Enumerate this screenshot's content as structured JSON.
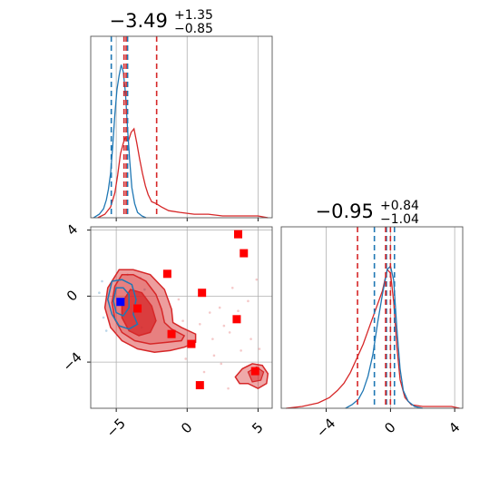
{
  "titles": {
    "x": {
      "main": "−3.49",
      "sup": "+1.35",
      "sub": "−0.85"
    },
    "y": {
      "main": "−0.95",
      "sup": "+0.84",
      "sub": "−1.04"
    }
  },
  "colors": {
    "blue": "#1f77b4",
    "red": "#d62728",
    "marker_red": "#ff0000",
    "marker_blue": "#0000ff",
    "grid": "#b0b0b0",
    "axes": "#000000"
  },
  "chart_data": {
    "type": "corner",
    "x_axis": {
      "range": [
        -6.8,
        6.0
      ],
      "ticks": [
        -5,
        0,
        5
      ],
      "tick_labels": [
        "−5",
        "0",
        "5"
      ]
    },
    "y_axis": {
      "range": [
        -6.8,
        4.2
      ],
      "ticks": [
        -4,
        0,
        4
      ],
      "tick_labels": [
        "−4",
        "0",
        "4"
      ]
    },
    "y_marginal_axis": {
      "range": [
        -6.8,
        4.5
      ],
      "ticks": [
        -4,
        0,
        4
      ],
      "tick_labels": [
        "−4",
        "0",
        "4"
      ]
    },
    "grid": true,
    "x_marginal": {
      "blue_quantiles": [
        -5.35,
        -4.45,
        -4.2
      ],
      "red_quantiles": [
        -4.45,
        -4.3,
        -2.15
      ],
      "blue_hist": [
        [
          -6.6,
          0
        ],
        [
          -6.2,
          0.02
        ],
        [
          -5.9,
          0.05
        ],
        [
          -5.7,
          0.1
        ],
        [
          -5.55,
          0.16
        ],
        [
          -5.4,
          0.25
        ],
        [
          -5.25,
          0.4
        ],
        [
          -5.1,
          0.58
        ],
        [
          -4.95,
          0.72
        ],
        [
          -4.8,
          0.8
        ],
        [
          -4.65,
          0.86
        ],
        [
          -4.5,
          0.82
        ],
        [
          -4.35,
          0.7
        ],
        [
          -4.2,
          0.5
        ],
        [
          -4.05,
          0.32
        ],
        [
          -3.9,
          0.17
        ],
        [
          -3.7,
          0.08
        ],
        [
          -3.5,
          0.03
        ],
        [
          -3.2,
          0.01
        ],
        [
          -2.9,
          0
        ]
      ],
      "red_hist": [
        [
          -6.3,
          0
        ],
        [
          -5.8,
          0.02
        ],
        [
          -5.4,
          0.06
        ],
        [
          -5.1,
          0.14
        ],
        [
          -4.9,
          0.24
        ],
        [
          -4.7,
          0.36
        ],
        [
          -4.5,
          0.42
        ],
        [
          -4.35,
          0.45
        ],
        [
          -4.15,
          0.43
        ],
        [
          -3.95,
          0.48
        ],
        [
          -3.75,
          0.5
        ],
        [
          -3.55,
          0.42
        ],
        [
          -3.35,
          0.33
        ],
        [
          -3.15,
          0.25
        ],
        [
          -2.95,
          0.18
        ],
        [
          -2.75,
          0.13
        ],
        [
          -2.5,
          0.09
        ],
        [
          -2.2,
          0.08
        ],
        [
          -1.8,
          0.06
        ],
        [
          -1.3,
          0.04
        ],
        [
          -0.5,
          0.03
        ],
        [
          0.5,
          0.02
        ],
        [
          1.5,
          0.02
        ],
        [
          2.5,
          0.01
        ],
        [
          3.5,
          0.01
        ],
        [
          5.0,
          0.01
        ],
        [
          5.7,
          0
        ]
      ]
    },
    "y_marginal": {
      "blue_quantiles": [
        -1.0,
        -0.25,
        0.25
      ],
      "red_quantiles": [
        -2.05,
        -0.3,
        0.0
      ],
      "blue_hist": [
        [
          -2.8,
          0
        ],
        [
          -2.4,
          0.02
        ],
        [
          -2.0,
          0.05
        ],
        [
          -1.7,
          0.1
        ],
        [
          -1.4,
          0.18
        ],
        [
          -1.1,
          0.3
        ],
        [
          -0.8,
          0.48
        ],
        [
          -0.5,
          0.64
        ],
        [
          -0.2,
          0.78
        ],
        [
          0.0,
          0.8
        ],
        [
          0.2,
          0.72
        ],
        [
          0.4,
          0.45
        ],
        [
          0.6,
          0.22
        ],
        [
          0.8,
          0.1
        ],
        [
          1.1,
          0.04
        ],
        [
          1.5,
          0.01
        ],
        [
          2.0,
          0
        ]
      ],
      "red_hist": [
        [
          -6.5,
          0
        ],
        [
          -5.5,
          0.01
        ],
        [
          -4.5,
          0.03
        ],
        [
          -3.8,
          0.06
        ],
        [
          -3.3,
          0.1
        ],
        [
          -2.9,
          0.14
        ],
        [
          -2.5,
          0.2
        ],
        [
          -2.1,
          0.28
        ],
        [
          -1.7,
          0.36
        ],
        [
          -1.3,
          0.46
        ],
        [
          -0.9,
          0.56
        ],
        [
          -0.5,
          0.66
        ],
        [
          -0.2,
          0.78
        ],
        [
          0.0,
          0.76
        ],
        [
          0.2,
          0.6
        ],
        [
          0.4,
          0.35
        ],
        [
          0.6,
          0.16
        ],
        [
          0.9,
          0.06
        ],
        [
          1.3,
          0.02
        ],
        [
          2.0,
          0.01
        ],
        [
          3.8,
          0.01
        ],
        [
          4.3,
          0
        ]
      ]
    },
    "red_markers": [
      [
        -1.4,
        1.35
      ],
      [
        1.05,
        0.2
      ],
      [
        3.6,
        3.75
      ],
      [
        4.0,
        2.6
      ],
      [
        -3.5,
        -0.75
      ],
      [
        -1.1,
        -2.3
      ],
      [
        0.3,
        -2.9
      ],
      [
        3.5,
        -1.4
      ],
      [
        4.8,
        -4.55
      ],
      [
        0.9,
        -5.4
      ]
    ],
    "blue_marker": [
      -4.7,
      -0.35
    ],
    "red_contours": {
      "outer": [
        [
          -4.8,
          1.6
        ],
        [
          -3.8,
          1.6
        ],
        [
          -2.6,
          1.3
        ],
        [
          -1.6,
          0.4
        ],
        [
          -1.1,
          -0.8
        ],
        [
          -1.0,
          -1.6
        ],
        [
          -0.4,
          -1.9
        ],
        [
          0.6,
          -2.3
        ],
        [
          0.6,
          -2.8
        ],
        [
          -0.2,
          -3.1
        ],
        [
          -1.2,
          -3.3
        ],
        [
          -2.3,
          -3.4
        ],
        [
          -3.5,
          -3.2
        ],
        [
          -4.6,
          -2.7
        ],
        [
          -5.4,
          -1.9
        ],
        [
          -5.8,
          -0.7
        ],
        [
          -5.6,
          0.5
        ]
      ],
      "mid": [
        [
          -4.6,
          1.3
        ],
        [
          -3.8,
          1.3
        ],
        [
          -2.9,
          0.9
        ],
        [
          -2.2,
          0.1
        ],
        [
          -1.8,
          -0.8
        ],
        [
          -1.6,
          -1.6
        ],
        [
          -1.1,
          -2.0
        ],
        [
          -0.2,
          -2.4
        ],
        [
          -0.4,
          -2.7
        ],
        [
          -1.4,
          -2.8
        ],
        [
          -2.6,
          -2.9
        ],
        [
          -3.7,
          -2.7
        ],
        [
          -4.6,
          -2.2
        ],
        [
          -5.1,
          -1.4
        ],
        [
          -5.3,
          -0.4
        ],
        [
          -5.1,
          0.6
        ]
      ],
      "inner": [
        [
          -4.0,
          0.4
        ],
        [
          -3.2,
          0.2
        ],
        [
          -2.5,
          -0.6
        ],
        [
          -2.2,
          -1.5
        ],
        [
          -2.6,
          -2.2
        ],
        [
          -3.4,
          -2.4
        ],
        [
          -4.1,
          -2.1
        ],
        [
          -4.6,
          -1.3
        ],
        [
          -4.6,
          -0.4
        ]
      ],
      "island": [
        [
          3.4,
          -4.9
        ],
        [
          3.9,
          -4.4
        ],
        [
          4.6,
          -4.1
        ],
        [
          5.3,
          -4.2
        ],
        [
          5.7,
          -4.7
        ],
        [
          5.6,
          -5.3
        ],
        [
          5.0,
          -5.6
        ],
        [
          4.3,
          -5.3
        ],
        [
          3.7,
          -5.3
        ]
      ],
      "island_inner": [
        [
          4.3,
          -4.6
        ],
        [
          4.9,
          -4.3
        ],
        [
          5.4,
          -4.6
        ],
        [
          5.2,
          -5.1
        ],
        [
          4.6,
          -5.2
        ]
      ]
    },
    "blue_contours": {
      "outer": [
        [
          -5.3,
          0.9
        ],
        [
          -4.6,
          1.0
        ],
        [
          -3.9,
          0.7
        ],
        [
          -3.6,
          -0.2
        ],
        [
          -3.8,
          -1.1
        ],
        [
          -3.5,
          -1.7
        ],
        [
          -4.1,
          -2.0
        ],
        [
          -4.8,
          -1.8
        ],
        [
          -5.3,
          -1.1
        ],
        [
          -5.6,
          -0.2
        ]
      ],
      "inner": [
        [
          -5.0,
          0.5
        ],
        [
          -4.5,
          0.5
        ],
        [
          -4.1,
          0.1
        ],
        [
          -4.1,
          -0.7
        ],
        [
          -4.5,
          -1.2
        ],
        [
          -5.0,
          -1.0
        ],
        [
          -5.2,
          -0.3
        ]
      ]
    },
    "red_scatter": [
      [
        -0.3,
        -1.5
      ],
      [
        1.6,
        -1.0
      ],
      [
        2.3,
        -0.7
      ],
      [
        3.0,
        -2.2
      ],
      [
        4.3,
        -0.3
      ],
      [
        2.6,
        -1.8
      ],
      [
        3.2,
        0.5
      ],
      [
        4.9,
        1.0
      ],
      [
        -0.6,
        -0.2
      ],
      [
        1.8,
        -2.6
      ],
      [
        3.8,
        -3.3
      ],
      [
        2.4,
        -4.1
      ],
      [
        1.9,
        -3.6
      ],
      [
        5.1,
        -3.2
      ],
      [
        0.9,
        -1.7
      ],
      [
        3.6,
        -0.9
      ],
      [
        4.5,
        -2.6
      ],
      [
        -0.1,
        -3.8
      ],
      [
        2.9,
        -5.6
      ],
      [
        1.2,
        -4.6
      ]
    ],
    "blue_scatter": [
      [
        -6.0,
        0.9
      ],
      [
        -5.9,
        -1.3
      ],
      [
        -3.3,
        1.1
      ],
      [
        -3.2,
        -1.9
      ],
      [
        -6.2,
        0.2
      ],
      [
        -4.2,
        1.3
      ],
      [
        -5.7,
        -2.1
      ],
      [
        -3.0,
        0.4
      ]
    ]
  }
}
